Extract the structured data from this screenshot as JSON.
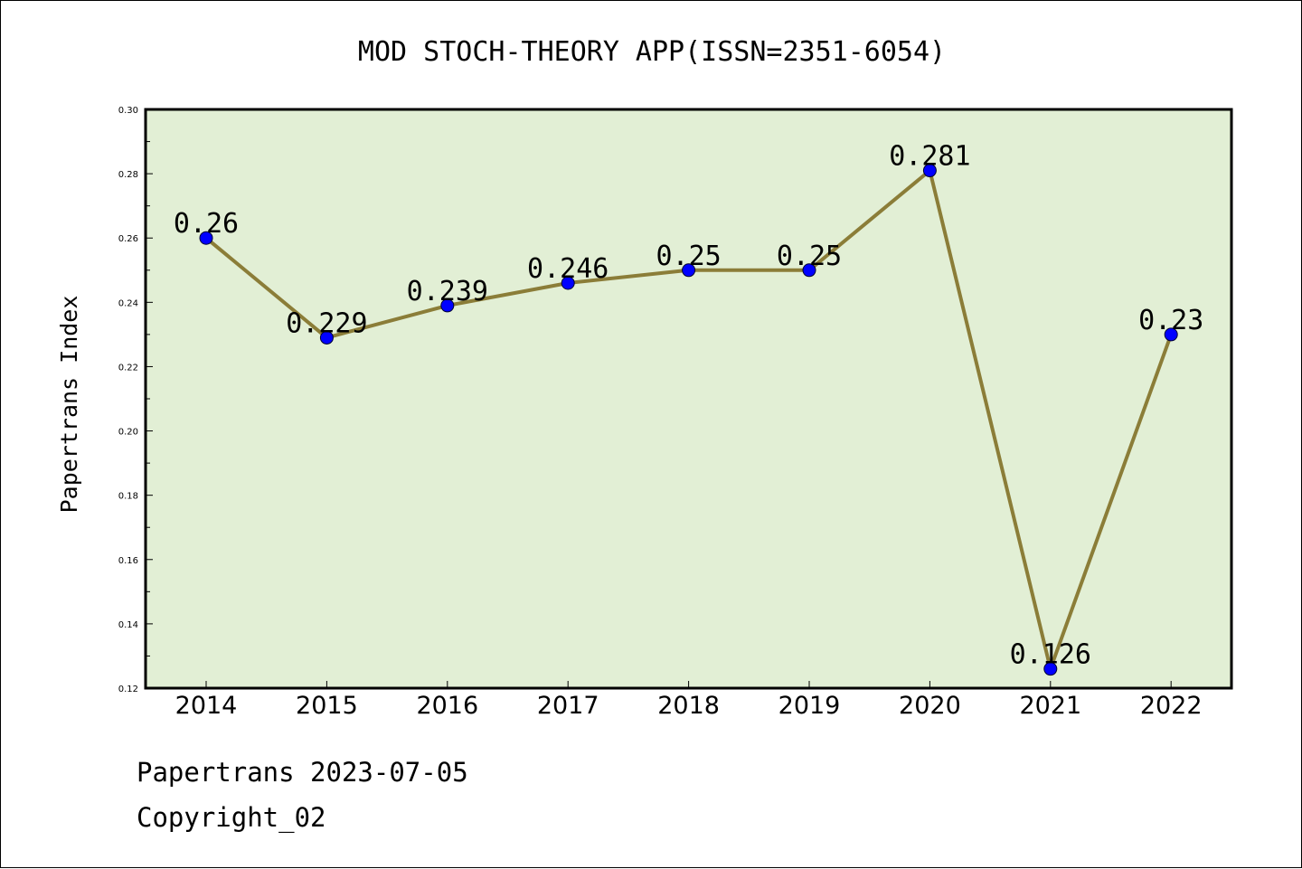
{
  "chart_data": {
    "type": "line",
    "title": "MOD STOCH-THEORY APP(ISSN=2351-6054)",
    "xlabel": "",
    "ylabel": "Papertrans Index",
    "categories": [
      "2014",
      "2015",
      "2016",
      "2017",
      "2018",
      "2019",
      "2020",
      "2021",
      "2022"
    ],
    "values": [
      0.26,
      0.229,
      0.239,
      0.246,
      0.25,
      0.25,
      0.281,
      0.126,
      0.23
    ],
    "data_labels": [
      "0.26",
      "0.229",
      "0.239",
      "0.246",
      "0.25",
      "0.25",
      "0.281",
      "0.126",
      "0.23"
    ],
    "ylim": [
      0.12,
      0.3
    ],
    "yticks": [
      "0.12",
      "0.14",
      "0.16",
      "0.18",
      "0.20",
      "0.22",
      "0.24",
      "0.26",
      "0.28",
      "0.30"
    ],
    "grid": false,
    "legend": "none",
    "colors": {
      "plot_background": "#e2efd5",
      "line": "#8b7d38",
      "marker": "#0000ff"
    }
  },
  "footer": {
    "date_line": "Papertrans 2023-07-05",
    "copyright": "Copyright_02"
  }
}
